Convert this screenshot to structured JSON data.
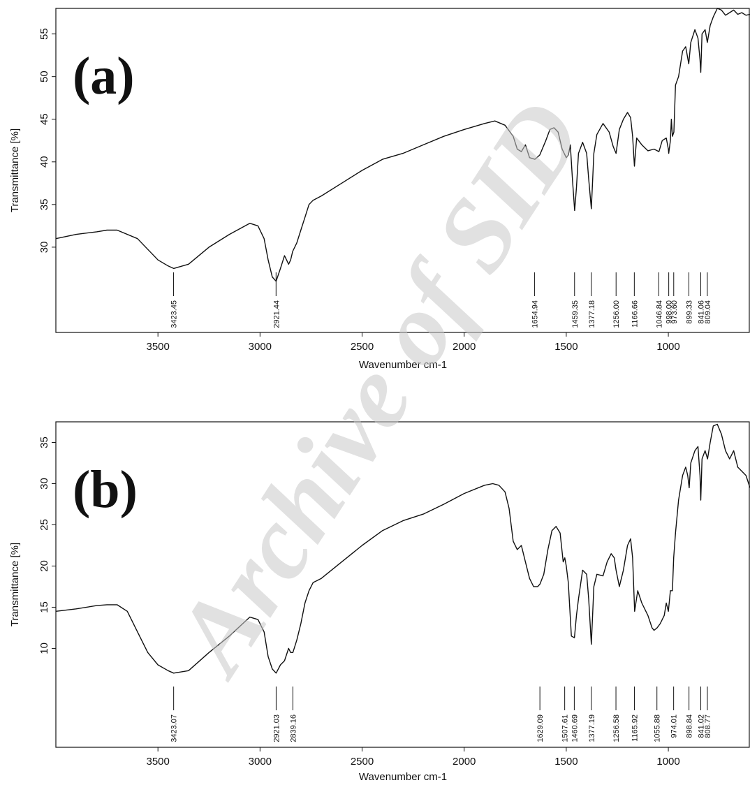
{
  "watermark": "Archive of SID",
  "chart_data": [
    {
      "type": "line",
      "panel_label": "(a)",
      "xlabel": "Wavenumber cm-1",
      "ylabel": "Transmittance [%]",
      "xlim": [
        4000,
        600
      ],
      "x_reversed": true,
      "ylim": [
        20,
        58
      ],
      "x_ticks": [
        3500,
        3000,
        2500,
        2000,
        1500,
        1000
      ],
      "y_ticks": [
        30,
        35,
        40,
        45,
        50,
        55
      ],
      "peaks": [
        "3423.45",
        "2921.44",
        "1654.94",
        "1459.35",
        "1377.18",
        "1256.00",
        "1166.66",
        "1046.84",
        "998.00",
        "973.60",
        "899.33",
        "841.06",
        "809.04"
      ],
      "series": [
        {
          "x": [
            4000,
            3900,
            3800,
            3750,
            3700,
            3600,
            3500,
            3450,
            3423,
            3350,
            3250,
            3150,
            3050,
            3010,
            2980,
            2960,
            2940,
            2921,
            2900,
            2880,
            2860,
            2850,
            2840,
            2820,
            2800,
            2780,
            2760,
            2740,
            2700,
            2600,
            2500,
            2400,
            2300,
            2200,
            2100,
            2000,
            1900,
            1850,
            1800,
            1760,
            1740,
            1720,
            1700,
            1680,
            1654,
            1630,
            1600,
            1580,
            1560,
            1540,
            1520,
            1500,
            1490,
            1480,
            1470,
            1459,
            1450,
            1440,
            1420,
            1400,
            1390,
            1377,
            1365,
            1350,
            1320,
            1290,
            1270,
            1256,
            1240,
            1220,
            1200,
            1185,
            1175,
            1166,
            1155,
            1130,
            1100,
            1070,
            1046,
            1030,
            1010,
            1000,
            998,
            990,
            985,
            980,
            973,
            965,
            950,
            930,
            915,
            900,
            890,
            870,
            855,
            845,
            841,
            835,
            820,
            809,
            795,
            780,
            760,
            740,
            720,
            700,
            680,
            660,
            640,
            620,
            600
          ],
          "y": [
            31,
            31.5,
            31.8,
            32,
            32,
            31,
            28.5,
            27.8,
            27.5,
            28,
            30,
            31.5,
            32.8,
            32.5,
            31,
            28.5,
            26.5,
            26,
            27.5,
            29,
            28,
            28.5,
            29.5,
            30.5,
            32,
            33.5,
            35,
            35.5,
            36,
            37.5,
            39,
            40.3,
            41,
            42,
            43,
            43.8,
            44.5,
            44.8,
            44.3,
            43,
            41.5,
            41.2,
            42,
            40.5,
            40.3,
            40.8,
            42.5,
            43.8,
            44,
            43.5,
            41.5,
            40.5,
            40.8,
            42,
            38,
            34.3,
            37,
            41,
            42.3,
            41,
            38,
            34.5,
            41,
            43.2,
            44.5,
            43.5,
            41.8,
            41,
            43.8,
            45,
            45.8,
            45.2,
            43,
            39.5,
            42.8,
            42,
            41.3,
            41.5,
            41.2,
            42.5,
            42.8,
            41.5,
            41,
            42.5,
            45,
            43,
            43.5,
            49,
            50,
            53,
            53.5,
            51.5,
            54,
            55.5,
            54.5,
            52,
            50.5,
            55,
            55.5,
            54,
            56,
            57,
            58,
            57.8,
            57.2,
            57.5,
            57.8,
            57.3,
            57.5,
            57.2,
            57.3
          ]
        }
      ]
    },
    {
      "type": "line",
      "panel_label": "(b)",
      "xlabel": "Wavenumber cm-1",
      "ylabel": "Transmittance [%]",
      "xlim": [
        4000,
        600
      ],
      "x_reversed": true,
      "ylim": [
        -2,
        37.5
      ],
      "x_ticks": [
        3500,
        3000,
        2500,
        2000,
        1500,
        1000
      ],
      "y_ticks": [
        10,
        15,
        20,
        25,
        30,
        35
      ],
      "peaks": [
        "3423.07",
        "2921.03",
        "2839.16",
        "1629.09",
        "1507.61",
        "1460.69",
        "1377.19",
        "1256.58",
        "1165.92",
        "1055.88",
        "974.01",
        "898.84",
        "841.02",
        "808.77"
      ],
      "series": [
        {
          "x": [
            4000,
            3900,
            3800,
            3750,
            3700,
            3650,
            3600,
            3550,
            3500,
            3450,
            3423,
            3350,
            3250,
            3150,
            3050,
            3010,
            2980,
            2960,
            2940,
            2921,
            2900,
            2880,
            2860,
            2850,
            2839,
            2820,
            2800,
            2780,
            2760,
            2740,
            2700,
            2600,
            2500,
            2400,
            2300,
            2200,
            2100,
            2000,
            1900,
            1860,
            1830,
            1800,
            1780,
            1760,
            1740,
            1720,
            1700,
            1680,
            1660,
            1640,
            1629,
            1610,
            1590,
            1570,
            1550,
            1530,
            1515,
            1507,
            1500,
            1490,
            1475,
            1460,
            1450,
            1440,
            1420,
            1400,
            1390,
            1377,
            1365,
            1350,
            1320,
            1300,
            1280,
            1265,
            1256,
            1240,
            1220,
            1200,
            1185,
            1175,
            1165,
            1150,
            1130,
            1100,
            1080,
            1070,
            1055,
            1040,
            1020,
            1010,
            1000,
            990,
            980,
            974,
            965,
            950,
            930,
            915,
            905,
            898,
            890,
            870,
            855,
            845,
            841,
            835,
            820,
            808,
            795,
            780,
            760,
            740,
            720,
            700,
            680,
            660,
            640,
            620,
            600
          ],
          "y": [
            14.5,
            14.8,
            15.2,
            15.3,
            15.3,
            14.5,
            12,
            9.5,
            8,
            7.3,
            7,
            7.3,
            9.5,
            11.5,
            13.8,
            13.5,
            12,
            9,
            7.5,
            7,
            8,
            8.5,
            10,
            9.5,
            9.5,
            11,
            13,
            15.5,
            17,
            18,
            18.5,
            20.5,
            22.5,
            24.3,
            25.5,
            26.3,
            27.5,
            28.8,
            29.8,
            30,
            29.8,
            29,
            27,
            23,
            22,
            22.5,
            20.5,
            18.5,
            17.5,
            17.5,
            17.8,
            19,
            22,
            24.3,
            24.8,
            24,
            20.5,
            21,
            20,
            18,
            11.5,
            11.3,
            14,
            16,
            19.5,
            19,
            16,
            10.5,
            17.5,
            19,
            18.8,
            20.5,
            21.5,
            21,
            19.5,
            17.5,
            19.5,
            22.5,
            23.3,
            21,
            14.5,
            17,
            15.5,
            14,
            12.5,
            12.2,
            12.5,
            13,
            14,
            15.5,
            14.5,
            17,
            17,
            21,
            24,
            28,
            31,
            32,
            31,
            29.5,
            32.5,
            34,
            34.5,
            31,
            28,
            33,
            34,
            33,
            35,
            37,
            37.2,
            36,
            34,
            33,
            34,
            32,
            31.5,
            31,
            29.5
          ]
        }
      ]
    }
  ]
}
